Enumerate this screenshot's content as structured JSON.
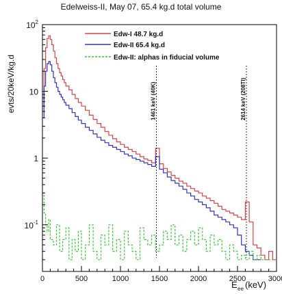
{
  "chart_data": {
    "type": "line",
    "title": "Edelweiss-II, May 07, 65.4 kg.d total volume",
    "xlabel": "E",
    "xlabel_sub": "ee",
    "xlabel_unit": "(keV)",
    "ylabel": "evts/20keV/kg.d",
    "xlim": [
      0,
      3000
    ],
    "ylim": [
      0.02,
      100
    ],
    "yscale": "log",
    "x_ticks": [
      "0",
      "500",
      "1000",
      "1500",
      "2000",
      "2500",
      "3000"
    ],
    "y_ticks": [
      {
        "base": "10",
        "exp": "-1",
        "value": 0.1
      },
      {
        "base": "1",
        "exp": "",
        "value": 1
      },
      {
        "base": "10",
        "exp": "",
        "value": 10
      },
      {
        "base": "10",
        "exp": "2",
        "value": 100
      }
    ],
    "legend_position": "top-right",
    "annotations": [
      {
        "text": "1461 keV (40K)",
        "x": 1461
      },
      {
        "text": "2614 keV (208Tl)",
        "x": 2614
      }
    ],
    "series": [
      {
        "name": "Edw-I 48.7 kg.d",
        "color": "#e04040",
        "style": "solid",
        "x": [
          0,
          20,
          40,
          60,
          80,
          100,
          120,
          140,
          160,
          180,
          200,
          220,
          240,
          260,
          280,
          300,
          340,
          380,
          420,
          460,
          500,
          550,
          600,
          650,
          700,
          750,
          800,
          850,
          900,
          950,
          1000,
          1050,
          1100,
          1150,
          1200,
          1250,
          1300,
          1350,
          1400,
          1450,
          1500,
          1550,
          1600,
          1650,
          1700,
          1750,
          1800,
          1850,
          1900,
          1950,
          2000,
          2050,
          2100,
          2150,
          2200,
          2250,
          2300,
          2350,
          2400,
          2450,
          2500,
          2550,
          2600,
          2650,
          2700,
          2750,
          2800,
          2850,
          2900,
          2950
        ],
        "y": [
          6,
          22,
          45,
          62,
          68,
          60,
          50,
          40,
          32,
          26,
          22,
          19,
          17,
          15,
          13.5,
          12,
          10.5,
          9,
          7.8,
          6.8,
          6,
          5.2,
          4.4,
          3.8,
          3.3,
          2.9,
          2.5,
          2.2,
          1.95,
          1.75,
          1.6,
          1.45,
          1.35,
          1.25,
          1.15,
          1.05,
          0.97,
          0.92,
          0.85,
          1.4,
          0.82,
          0.7,
          0.62,
          0.55,
          0.5,
          0.45,
          0.42,
          0.38,
          0.35,
          0.32,
          0.3,
          0.27,
          0.25,
          0.23,
          0.21,
          0.19,
          0.17,
          0.16,
          0.15,
          0.14,
          0.13,
          0.12,
          0.22,
          0.11,
          0.05,
          0.045,
          0.035,
          0.03,
          0.04,
          0.03
        ]
      },
      {
        "name": "Edw-II 65.4 kg.d",
        "color": "#3030c0",
        "style": "solid",
        "x": [
          0,
          20,
          40,
          60,
          80,
          100,
          120,
          140,
          160,
          180,
          200,
          220,
          240,
          260,
          280,
          300,
          340,
          380,
          420,
          460,
          500,
          550,
          600,
          650,
          700,
          750,
          800,
          850,
          900,
          950,
          1000,
          1050,
          1100,
          1150,
          1200,
          1250,
          1300,
          1350,
          1400,
          1450,
          1500,
          1550,
          1600,
          1650,
          1700,
          1750,
          1800,
          1850,
          1900,
          1950,
          2000,
          2050,
          2100,
          2150,
          2200,
          2250,
          2300,
          2350,
          2400,
          2450,
          2500,
          2550,
          2600,
          2650,
          2700,
          2750
        ],
        "y": [
          4,
          12,
          20,
          26,
          28,
          25,
          20,
          16,
          13.5,
          11.5,
          10,
          9,
          8.2,
          7.5,
          6.8,
          6.2,
          5.5,
          4.8,
          4.2,
          3.7,
          3.3,
          2.9,
          2.6,
          2.3,
          2.05,
          1.85,
          1.7,
          1.55,
          1.45,
          1.35,
          1.25,
          1.15,
          1.08,
          1.0,
          0.95,
          0.9,
          0.85,
          0.8,
          0.75,
          1.05,
          0.68,
          0.6,
          0.52,
          0.46,
          0.42,
          0.38,
          0.34,
          0.3,
          0.27,
          0.24,
          0.22,
          0.2,
          0.18,
          0.16,
          0.14,
          0.13,
          0.12,
          0.11,
          0.1,
          0.09,
          0.07,
          0.05,
          0.04,
          0.035,
          0.03,
          0.03
        ]
      },
      {
        "name": "Edw-II: alphas in fiducial volume",
        "color": "#33cc33",
        "style": "dashed",
        "x": [
          0,
          20,
          40,
          60,
          80,
          100,
          140,
          180,
          220,
          260,
          300,
          340,
          380,
          420,
          460,
          500,
          550,
          600,
          650,
          700,
          750,
          800,
          850,
          900,
          950,
          1000,
          1050,
          1100,
          1150,
          1200,
          1250,
          1300,
          1350,
          1400,
          1450,
          1500,
          1550,
          1600,
          1650,
          1700,
          1750,
          1800,
          1850,
          1900,
          1950,
          2000,
          2050,
          2100,
          2150,
          2200,
          2250,
          2300,
          2350,
          2400,
          2450,
          2500,
          2550,
          2600,
          2650,
          2700,
          2750,
          2800,
          2850,
          2900
        ],
        "y": [
          0.3,
          0.15,
          0.1,
          0.08,
          0.12,
          0.06,
          0.05,
          0.1,
          0.04,
          0.06,
          0.09,
          0.03,
          0.06,
          0.04,
          0.08,
          0.03,
          0.05,
          0.1,
          0.04,
          0.03,
          0.07,
          0.05,
          0.1,
          0.04,
          0.06,
          0.03,
          0.08,
          0.05,
          0.04,
          0.03,
          0.09,
          0.06,
          0.05,
          0.07,
          0.04,
          0.05,
          0.08,
          0.06,
          0.1,
          0.05,
          0.07,
          0.04,
          0.06,
          0.08,
          0.05,
          0.09,
          0.06,
          0.04,
          0.07,
          0.05,
          0.06,
          0.04,
          0.03,
          0.05,
          0.04,
          0.03,
          0.035,
          0.03,
          0.04,
          0.03,
          0.035,
          0.03,
          0.03,
          0.03
        ]
      }
    ]
  }
}
